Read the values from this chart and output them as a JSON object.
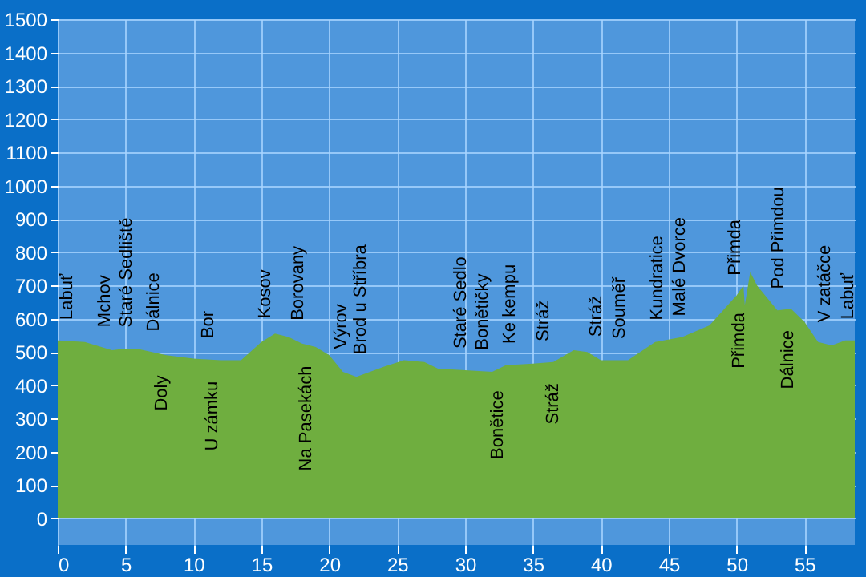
{
  "chart_data": {
    "type": "area",
    "x": [
      0,
      2,
      4,
      5,
      6,
      8,
      10,
      12,
      13.5,
      15,
      16,
      17,
      18,
      19,
      20,
      21,
      22,
      24,
      25.5,
      27,
      28,
      30,
      32,
      33,
      35,
      36.5,
      38,
      39,
      40,
      42,
      44,
      46,
      48,
      50,
      50.5,
      50.6,
      51,
      51.5,
      53,
      54,
      55,
      56,
      57,
      58,
      58.7
    ],
    "series": [
      {
        "color": "#6fae3f",
        "values": [
          535,
          530,
          505,
          510,
          508,
          490,
          480,
          475,
          475,
          530,
          555,
          545,
          525,
          515,
          490,
          440,
          425,
          455,
          475,
          470,
          450,
          445,
          440,
          460,
          465,
          470,
          505,
          500,
          475,
          475,
          530,
          545,
          580,
          670,
          700,
          640,
          740,
          700,
          625,
          630,
          590,
          530,
          520,
          535,
          535
        ]
      }
    ],
    "xlim": [
      0,
      58.7
    ],
    "ylim": [
      -80,
      1500
    ],
    "xticks": [
      0,
      5,
      10,
      15,
      20,
      25,
      30,
      35,
      40,
      45,
      50,
      55
    ],
    "yticks": [
      0,
      100,
      200,
      300,
      400,
      500,
      600,
      700,
      800,
      900,
      1000,
      1100,
      1200,
      1300,
      1400,
      1500
    ],
    "grid": true,
    "legend": false,
    "annotations": [
      {
        "text": "Labuť",
        "x": 0.7,
        "y": 539
      },
      {
        "text": "Mchov",
        "x": 3.5,
        "y": 517
      },
      {
        "text": "Staré Sedliště",
        "x": 5.1,
        "y": 516
      },
      {
        "text": "Dálnice",
        "x": 7.1,
        "y": 504
      },
      {
        "text": "Doly",
        "x": 7.7,
        "y": 487
      },
      {
        "text": "Bor",
        "x": 11.1,
        "y": 483
      },
      {
        "text": "U zámku",
        "x": 11.4,
        "y": 470
      },
      {
        "text": "Kosov",
        "x": 15.3,
        "y": 543
      },
      {
        "text": "Borovany",
        "x": 17.7,
        "y": 537
      },
      {
        "text": "Na Pasekách",
        "x": 18.3,
        "y": 516
      },
      {
        "text": "Výrov",
        "x": 20.9,
        "y": 451
      },
      {
        "text": "Brod u Stříbra",
        "x": 22.3,
        "y": 435
      },
      {
        "text": "Staré Sedlo",
        "x": 29.7,
        "y": 452
      },
      {
        "text": "Bonětičky",
        "x": 31.3,
        "y": 448
      },
      {
        "text": "Bonětice",
        "x": 32.4,
        "y": 442
      },
      {
        "text": "Ke kempu",
        "x": 33.3,
        "y": 467
      },
      {
        "text": "Stráž",
        "x": 35.8,
        "y": 474
      },
      {
        "text": "Stráž",
        "x": 36.5,
        "y": 464
      },
      {
        "text": "Stráž",
        "x": 39.7,
        "y": 488
      },
      {
        "text": "Souměř",
        "x": 41.4,
        "y": 481
      },
      {
        "text": "Kundratice",
        "x": 44.2,
        "y": 538
      },
      {
        "text": "Malé Dvorce",
        "x": 45.8,
        "y": 550
      },
      {
        "text": "Přimda",
        "x": 49.9,
        "y": 672
      },
      {
        "text": "Přimda",
        "x": 50.2,
        "y": 676
      },
      {
        "text": "Pod Přimdou",
        "x": 53.1,
        "y": 632
      },
      {
        "text": "Dálnice",
        "x": 53.8,
        "y": 623
      },
      {
        "text": "V zatáčce",
        "x": 56.5,
        "y": 531
      },
      {
        "text": "Labuť",
        "x": 58.2,
        "y": 541
      }
    ]
  }
}
